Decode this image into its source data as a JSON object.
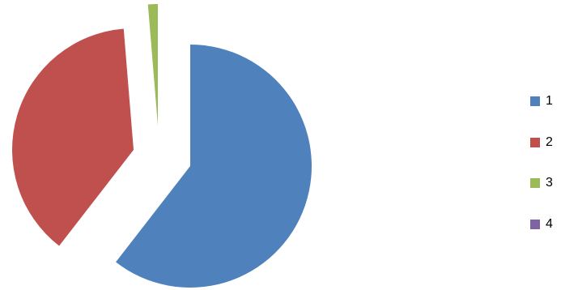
{
  "chart_data": {
    "type": "pie",
    "title": "",
    "categories": [
      "1",
      "2",
      "3",
      "4"
    ],
    "values": [
      60.5,
      38.2,
      1.3,
      0
    ],
    "colors": [
      "#4f81bd",
      "#c0504d",
      "#9bbb59",
      "#8064a2"
    ],
    "exploded": true,
    "legend_position": "right"
  }
}
